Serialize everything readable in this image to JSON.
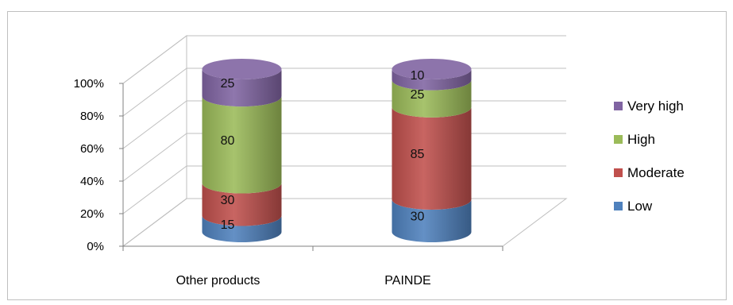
{
  "chart_data": {
    "type": "bar",
    "stacked": "percent",
    "three_d": true,
    "shape": "cylinder",
    "title": "",
    "xlabel": "",
    "ylabel": "",
    "ylim": [
      0,
      100
    ],
    "y_ticks": [
      "0%",
      "20%",
      "40%",
      "60%",
      "80%",
      "100%"
    ],
    "categories": [
      "Other products",
      "PAINDE"
    ],
    "series": [
      {
        "name": "Low",
        "color": "#4f81bd",
        "values": [
          15,
          30
        ]
      },
      {
        "name": "Moderate",
        "color": "#c0504d",
        "values": [
          30,
          85
        ]
      },
      {
        "name": "High",
        "color": "#9bbb59",
        "values": [
          80,
          25
        ]
      },
      {
        "name": "Very high",
        "color": "#8064a2",
        "values": [
          25,
          10
        ]
      }
    ],
    "legend_position": "right",
    "legend_order": [
      "Very high",
      "High",
      "Moderate",
      "Low"
    ],
    "grid": true
  }
}
